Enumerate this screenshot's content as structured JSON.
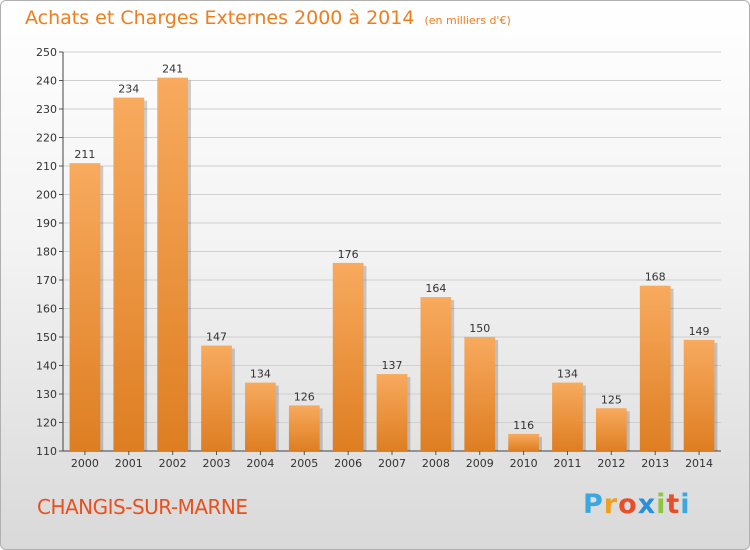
{
  "title": "Achats et Charges Externes 2000 à 2014",
  "subtitle": "(en milliers d'€)",
  "town": "CHANGIS-SUR-MARNE",
  "logo": {
    "letters": [
      "P",
      "r",
      "o",
      "x",
      "i",
      "t",
      "i"
    ],
    "colors": [
      "#3aa7e0",
      "#f0a020",
      "#e94e2a",
      "#2a8fd8",
      "#8cc63f",
      "#e94e2a",
      "#3aa7e0"
    ]
  },
  "colors": {
    "bar_light": "#f8aa5e",
    "bar_dark": "#de7e22",
    "title": "#f07d1c",
    "town": "#e8501e"
  },
  "chart_data": {
    "type": "bar",
    "categories": [
      "2000",
      "2001",
      "2002",
      "2003",
      "2004",
      "2005",
      "2006",
      "2007",
      "2008",
      "2009",
      "2010",
      "2011",
      "2012",
      "2013",
      "2014"
    ],
    "values": [
      211,
      234,
      241,
      147,
      134,
      126,
      176,
      137,
      164,
      150,
      116,
      134,
      125,
      168,
      149
    ],
    "yticks": [
      110,
      120,
      130,
      140,
      150,
      160,
      170,
      180,
      190,
      200,
      210,
      220,
      230,
      240,
      250
    ],
    "ylim": [
      110,
      250
    ],
    "grid": true,
    "data_labels": true
  }
}
